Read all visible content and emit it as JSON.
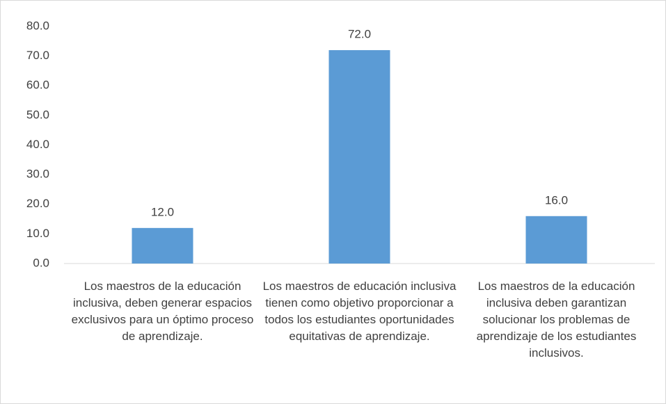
{
  "chart_data": {
    "type": "bar",
    "categories": [
      "Los maestros de la educación inclusiva, deben generar espacios exclusivos para un óptimo proceso de aprendizaje.",
      "Los maestros de educación inclusiva tienen como objetivo proporcionar a todos los estudiantes oportunidades equitativas de aprendizaje.",
      "Los maestros de la educación inclusiva deben garantizan solucionar los problemas de aprendizaje de los estudiantes inclusivos."
    ],
    "values": [
      12,
      72,
      16
    ],
    "value_labels": [
      "12.0",
      "72.0",
      "16.0"
    ],
    "color": "#5b9bd5",
    "ylim": [
      0,
      80
    ],
    "yticks": [
      {
        "value": 0,
        "label": "0.0"
      },
      {
        "value": 10,
        "label": "10.0"
      },
      {
        "value": 20,
        "label": "20.0"
      },
      {
        "value": 30,
        "label": "30.0"
      },
      {
        "value": 40,
        "label": "40.0"
      },
      {
        "value": 50,
        "label": "50.0"
      },
      {
        "value": 60,
        "label": "60.0"
      },
      {
        "value": 70,
        "label": "70.0"
      },
      {
        "value": 80,
        "label": "80.0"
      }
    ],
    "grid": false
  }
}
